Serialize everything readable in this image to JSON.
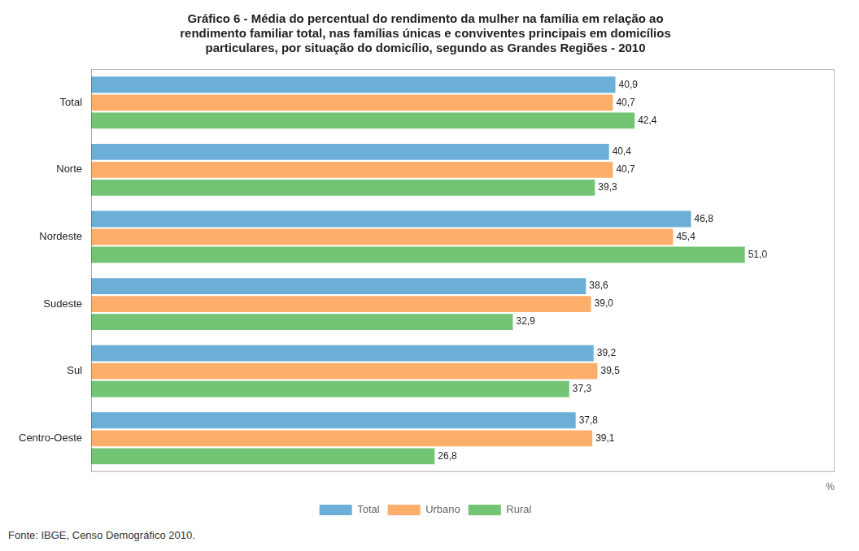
{
  "chart_data": {
    "type": "bar",
    "orientation": "horizontal",
    "title": "Gráfico 6 - Média do percentual do rendimento da mulher na família em relação ao\nrendimento familiar total, nas famílias únicas e conviventes principais em domicílios\nparticulares, por situação do domicílio, segundo as Grandes Regiões - 2010",
    "categories": [
      "Total",
      "Norte",
      "Nordeste",
      "Sudeste",
      "Sul",
      "Centro-Oeste"
    ],
    "series": [
      {
        "name": "Total",
        "color": "#6baed6",
        "values": [
          40.9,
          40.4,
          46.8,
          38.6,
          39.2,
          37.8
        ],
        "value_labels": [
          "40,9",
          "40,4",
          "46,8",
          "38,6",
          "39,2",
          "37,8"
        ]
      },
      {
        "name": "Urbano",
        "color": "#fdae6b",
        "values": [
          40.7,
          40.7,
          45.4,
          39.0,
          39.5,
          39.1
        ],
        "value_labels": [
          "40,7",
          "40,7",
          "45,4",
          "39,0",
          "39,5",
          "39,1"
        ]
      },
      {
        "name": "Rural",
        "color": "#74c476",
        "values": [
          42.4,
          39.3,
          51.0,
          32.9,
          37.3,
          26.8
        ],
        "value_labels": [
          "42,4",
          "39,3",
          "51,0",
          "32,9",
          "37,3",
          "26,8"
        ]
      }
    ],
    "xlabel": "%",
    "xlim": [
      0,
      58
    ],
    "tick_labels": "y",
    "grid": false,
    "legend": "bottom",
    "data_labels": true,
    "annotations": [
      "Fonte: IBGE, Censo Demográfico 2010."
    ]
  }
}
